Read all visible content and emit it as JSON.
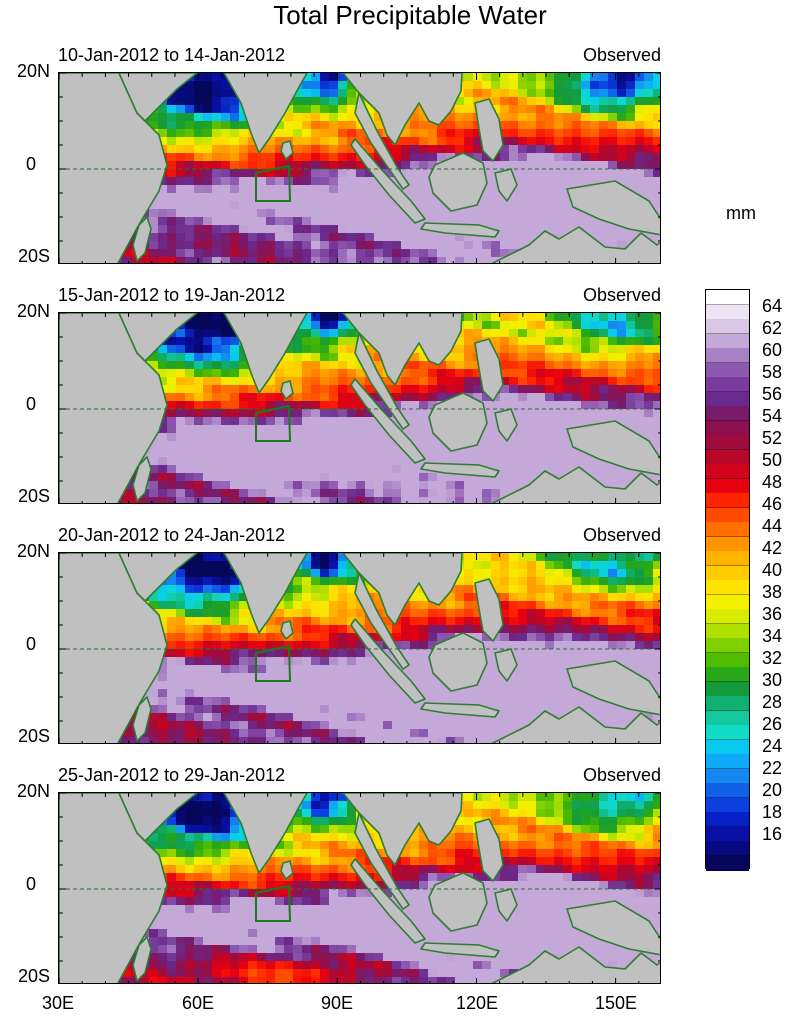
{
  "title": "Total Precipitable Water",
  "units": "mm",
  "panels": [
    {
      "date_range": "10-Jan-2012 to 14-Jan-2012",
      "tag": "Observed"
    },
    {
      "date_range": "15-Jan-2012 to 19-Jan-2012",
      "tag": "Observed"
    },
    {
      "date_range": "20-Jan-2012 to 24-Jan-2012",
      "tag": "Observed"
    },
    {
      "date_range": "25-Jan-2012 to 29-Jan-2012",
      "tag": "Observed"
    }
  ],
  "lat_labels": [
    "20N",
    "0",
    "20S"
  ],
  "lon_labels": [
    "30E",
    "60E",
    "90E",
    "120E",
    "150E"
  ],
  "colorbar_labels": [
    "64",
    "62",
    "60",
    "58",
    "56",
    "54",
    "52",
    "50",
    "48",
    "46",
    "44",
    "42",
    "40",
    "38",
    "36",
    "34",
    "32",
    "30",
    "28",
    "26",
    "24",
    "22",
    "20",
    "18",
    "16"
  ],
  "colors": {
    "land": "#c0c0c0",
    "coast": "#2e7d32",
    "box": "#1b7a1b",
    "colorbar_top_to_bottom": [
      "#ffffff",
      "#ece4f2",
      "#d8c8e6",
      "#c4a8d8",
      "#a880c4",
      "#8c58b0",
      "#7a3aa0",
      "#6a2a8c",
      "#7a1a6a",
      "#8c1050",
      "#a00c3c",
      "#b8082a",
      "#d0041c",
      "#e80010",
      "#ff2400",
      "#ff4a00",
      "#ff7000",
      "#ff9400",
      "#ffb400",
      "#ffcc00",
      "#ffe400",
      "#f4f000",
      "#d8ec00",
      "#b0e000",
      "#80d000",
      "#50bc00",
      "#28a818",
      "#139a3c",
      "#10b070",
      "#14c8a0",
      "#10dcc8",
      "#08c8f0",
      "#10a8f8",
      "#1488f0",
      "#1060e8",
      "#0c40e0",
      "#0820c8",
      "#0810a8",
      "#080880",
      "#06065a"
    ]
  }
}
